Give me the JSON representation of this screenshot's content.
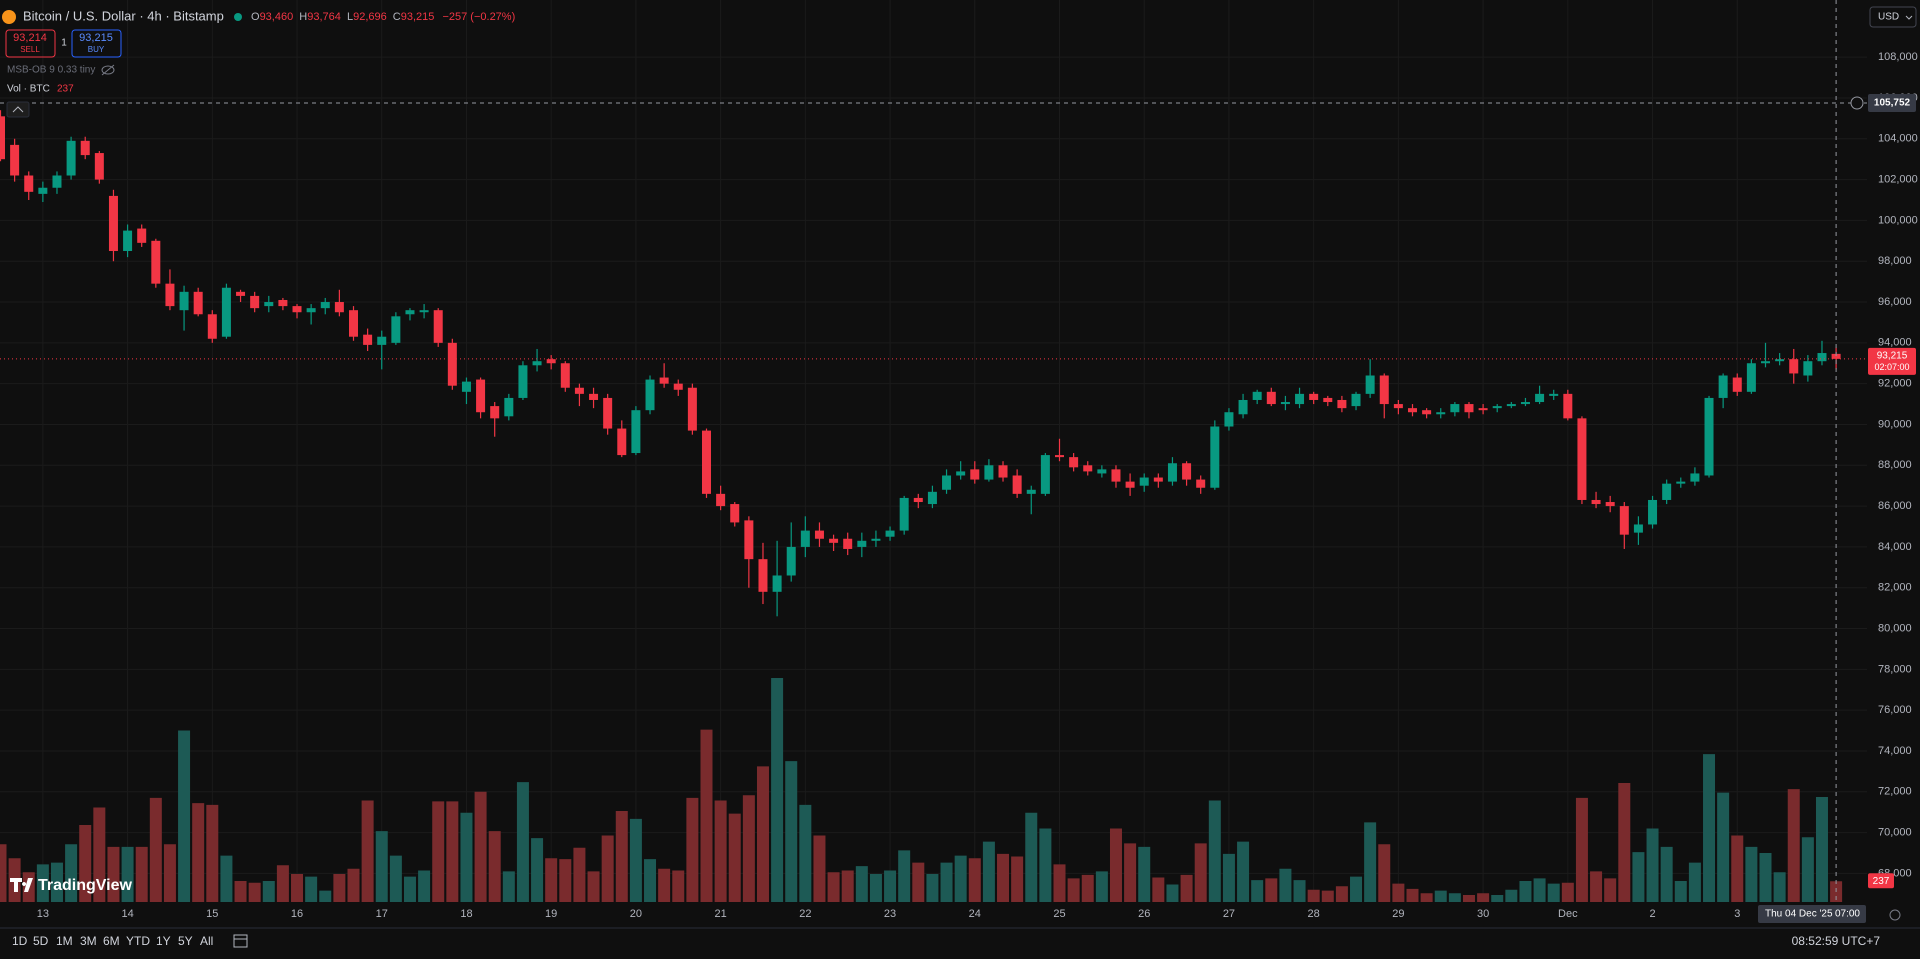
{
  "ui": {
    "symbol": "Bitcoin / U.S. Dollar · 4h · Bitstamp",
    "ohlc": [
      {
        "key": "O",
        "value": "93,460"
      },
      {
        "key": "H",
        "value": "93,764"
      },
      {
        "key": "L",
        "value": "92,696"
      },
      {
        "key": "C",
        "value": "93,215"
      }
    ],
    "change": "−257 (−0.27%)",
    "sell": {
      "price": "93,214",
      "label": "SELL"
    },
    "buy": {
      "price": "93,215",
      "label": "BUY"
    },
    "quantity": "1",
    "indicator": "MSB-OB 9 0.33 tiny",
    "volume_legend": "Vol · BTC",
    "currency": "USD",
    "ranges": [
      "1D",
      "5D",
      "1M",
      "3M",
      "6M",
      "YTD",
      "1Y",
      "5Y",
      "All"
    ],
    "clock": "08:52:59 UTC+7",
    "brand": "TradingView"
  },
  "chart_data": {
    "type": "candlestick",
    "ylim": [
      66600,
      110800
    ],
    "yticks": [
      {
        "value": 68000,
        "label": "68,000"
      },
      {
        "value": 70000,
        "label": "70,000"
      },
      {
        "value": 72000,
        "label": "72,000"
      },
      {
        "value": 74000,
        "label": "74,000"
      },
      {
        "value": 76000,
        "label": "76,000"
      },
      {
        "value": 78000,
        "label": "78,000"
      },
      {
        "value": 80000,
        "label": "80,000"
      },
      {
        "value": 82000,
        "label": "82,000"
      },
      {
        "value": 84000,
        "label": "84,000"
      },
      {
        "value": 86000,
        "label": "86,000"
      },
      {
        "value": 88000,
        "label": "88,000"
      },
      {
        "value": 90000,
        "label": "90,000"
      },
      {
        "value": 92000,
        "label": "92,000"
      },
      {
        "value": 94000,
        "label": "94,000"
      },
      {
        "value": 96000,
        "label": "96,000"
      },
      {
        "value": 98000,
        "label": "98,000"
      },
      {
        "value": 100000,
        "label": "100,000"
      },
      {
        "value": 102000,
        "label": "102,000"
      },
      {
        "value": 104000,
        "label": "104,000"
      },
      {
        "value": 106000,
        "label": "106,000"
      },
      {
        "value": 108000,
        "label": "108,000"
      }
    ],
    "grid": true,
    "up_color": "#089981",
    "down_color": "#f23645",
    "volume_up_color": "#1d5a55",
    "volume_down_color": "#7a2b2d",
    "volume_ylim": [
      0,
      2800
    ],
    "categories": [
      null,
      null,
      null,
      "13",
      null,
      null,
      null,
      null,
      null,
      "14",
      null,
      null,
      null,
      null,
      null,
      "15",
      null,
      null,
      null,
      null,
      null,
      "16",
      null,
      null,
      null,
      null,
      null,
      "17",
      null,
      null,
      null,
      null,
      null,
      "18",
      null,
      null,
      null,
      null,
      null,
      "19",
      null,
      null,
      null,
      null,
      null,
      "20",
      null,
      null,
      null,
      null,
      null,
      "21",
      null,
      null,
      null,
      null,
      null,
      "22",
      null,
      null,
      null,
      null,
      null,
      "23",
      null,
      null,
      null,
      null,
      null,
      "24",
      null,
      null,
      null,
      null,
      null,
      "25",
      null,
      null,
      null,
      null,
      null,
      "26",
      null,
      null,
      null,
      null,
      null,
      "27",
      null,
      null,
      null,
      null,
      null,
      "28",
      null,
      null,
      null,
      null,
      null,
      "29",
      null,
      null,
      null,
      null,
      null,
      "30",
      null,
      null,
      null,
      null,
      null,
      "Dec",
      null,
      null,
      null,
      null,
      null,
      "2",
      null,
      null,
      null,
      null,
      null,
      "3",
      null,
      null,
      null,
      null,
      null,
      null,
      null
    ],
    "candles": [
      [
        105100,
        105400,
        102900,
        103000
      ],
      [
        103700,
        104000,
        101900,
        102200
      ],
      [
        102200,
        102400,
        101000,
        101400
      ],
      [
        101300,
        101900,
        100900,
        101600
      ],
      [
        101600,
        102400,
        101300,
        102200
      ],
      [
        102200,
        104100,
        102000,
        103900
      ],
      [
        103900,
        104100,
        103000,
        103200
      ],
      [
        103300,
        103400,
        101800,
        102000
      ],
      [
        101200,
        101500,
        98000,
        98500
      ],
      [
        98500,
        99800,
        98200,
        99500
      ],
      [
        99600,
        99800,
        98700,
        98900
      ],
      [
        99000,
        99100,
        96700,
        96900
      ],
      [
        96900,
        97600,
        95600,
        95800
      ],
      [
        95600,
        96800,
        94600,
        96500
      ],
      [
        96500,
        96700,
        95300,
        95400
      ],
      [
        95400,
        95600,
        94000,
        94200
      ],
      [
        94300,
        96900,
        94200,
        96700
      ],
      [
        96500,
        96600,
        96000,
        96300
      ],
      [
        96300,
        96500,
        95500,
        95700
      ],
      [
        95800,
        96300,
        95500,
        96000
      ],
      [
        96100,
        96200,
        95600,
        95800
      ],
      [
        95800,
        95900,
        95200,
        95500
      ],
      [
        95500,
        95900,
        94900,
        95700
      ],
      [
        95700,
        96200,
        95400,
        96000
      ],
      [
        96000,
        96600,
        95300,
        95500
      ],
      [
        95600,
        95800,
        94100,
        94300
      ],
      [
        94400,
        94700,
        93600,
        93900
      ],
      [
        93900,
        94600,
        92700,
        94300
      ],
      [
        94000,
        95500,
        93900,
        95300
      ],
      [
        95400,
        95700,
        95100,
        95600
      ],
      [
        95500,
        95900,
        95200,
        95600
      ],
      [
        95600,
        95700,
        93800,
        94000
      ],
      [
        94000,
        94200,
        91700,
        91900
      ],
      [
        91600,
        92300,
        91000,
        92100
      ],
      [
        92200,
        92300,
        90300,
        90600
      ],
      [
        90900,
        91100,
        89400,
        90300
      ],
      [
        90400,
        91500,
        90200,
        91300
      ],
      [
        91300,
        93100,
        91200,
        92900
      ],
      [
        92900,
        93700,
        92600,
        93100
      ],
      [
        93200,
        93400,
        92700,
        93000
      ],
      [
        93000,
        93100,
        91600,
        91800
      ],
      [
        91800,
        92000,
        90900,
        91500
      ],
      [
        91500,
        91800,
        90800,
        91200
      ],
      [
        91300,
        91500,
        89500,
        89800
      ],
      [
        89800,
        90200,
        88400,
        88500
      ],
      [
        88600,
        90900,
        88500,
        90700
      ],
      [
        90700,
        92400,
        90500,
        92200
      ],
      [
        92300,
        93000,
        91800,
        92000
      ],
      [
        92000,
        92200,
        91400,
        91700
      ],
      [
        91800,
        92000,
        89500,
        89700
      ],
      [
        89700,
        89800,
        86400,
        86600
      ],
      [
        86600,
        87000,
        85800,
        86000
      ],
      [
        86100,
        86200,
        85000,
        85200
      ],
      [
        85300,
        85500,
        82000,
        83400
      ],
      [
        83400,
        84200,
        81200,
        81800
      ],
      [
        81800,
        84300,
        80600,
        82600
      ],
      [
        82600,
        85200,
        82300,
        84000
      ],
      [
        84000,
        85500,
        83500,
        84800
      ],
      [
        84800,
        85200,
        84000,
        84400
      ],
      [
        84400,
        84600,
        83800,
        84200
      ],
      [
        84400,
        84700,
        83600,
        83900
      ],
      [
        84000,
        84700,
        83500,
        84300
      ],
      [
        84300,
        84800,
        84000,
        84400
      ],
      [
        84500,
        85000,
        84300,
        84800
      ],
      [
        84800,
        86500,
        84600,
        86400
      ],
      [
        86400,
        86600,
        85900,
        86200
      ],
      [
        86100,
        87000,
        85900,
        86700
      ],
      [
        86800,
        87800,
        86600,
        87500
      ],
      [
        87500,
        88200,
        87300,
        87700
      ],
      [
        87800,
        88200,
        87100,
        87300
      ],
      [
        87300,
        88300,
        87200,
        88000
      ],
      [
        88000,
        88200,
        87200,
        87400
      ],
      [
        87500,
        87800,
        86400,
        86600
      ],
      [
        86600,
        87000,
        85600,
        86800
      ],
      [
        86600,
        88600,
        86500,
        88500
      ],
      [
        88500,
        89300,
        88200,
        88400
      ],
      [
        88400,
        88600,
        87700,
        87900
      ],
      [
        88000,
        88200,
        87500,
        87700
      ],
      [
        87600,
        88000,
        87400,
        87800
      ],
      [
        87800,
        88000,
        86900,
        87200
      ],
      [
        87200,
        87600,
        86500,
        86900
      ],
      [
        87000,
        87600,
        86700,
        87400
      ],
      [
        87400,
        87600,
        86900,
        87200
      ],
      [
        87200,
        88400,
        87000,
        88100
      ],
      [
        88100,
        88200,
        87000,
        87300
      ],
      [
        87300,
        87500,
        86600,
        86900
      ],
      [
        86900,
        90200,
        86800,
        89900
      ],
      [
        89900,
        90800,
        89700,
        90600
      ],
      [
        90500,
        91500,
        90300,
        91200
      ],
      [
        91200,
        91700,
        91000,
        91600
      ],
      [
        91600,
        91800,
        90900,
        91000
      ],
      [
        91000,
        91400,
        90700,
        91100
      ],
      [
        91000,
        91800,
        90800,
        91500
      ],
      [
        91500,
        91600,
        91000,
        91200
      ],
      [
        91300,
        91400,
        90900,
        91100
      ],
      [
        91200,
        91400,
        90600,
        90800
      ],
      [
        90900,
        91600,
        90700,
        91500
      ],
      [
        91500,
        93200,
        91300,
        92400
      ],
      [
        92400,
        92500,
        90300,
        91000
      ],
      [
        91000,
        91200,
        90500,
        90800
      ],
      [
        90800,
        91000,
        90400,
        90600
      ],
      [
        90700,
        90800,
        90300,
        90500
      ],
      [
        90500,
        90800,
        90300,
        90600
      ],
      [
        90600,
        91100,
        90400,
        91000
      ],
      [
        91000,
        91100,
        90300,
        90600
      ],
      [
        90800,
        91000,
        90500,
        90700
      ],
      [
        90800,
        91000,
        90600,
        90900
      ],
      [
        90900,
        91100,
        90800,
        91000
      ],
      [
        91000,
        91300,
        90900,
        91100
      ],
      [
        91100,
        91900,
        91000,
        91500
      ],
      [
        91400,
        91700,
        91200,
        91500
      ],
      [
        91500,
        91700,
        90200,
        90300
      ],
      [
        90300,
        90400,
        86100,
        86300
      ],
      [
        86300,
        86700,
        85900,
        86100
      ],
      [
        86200,
        86500,
        85700,
        86000
      ],
      [
        86000,
        86200,
        83900,
        84600
      ],
      [
        84700,
        85500,
        84100,
        85100
      ],
      [
        85100,
        86500,
        84900,
        86300
      ],
      [
        86300,
        87300,
        86100,
        87100
      ],
      [
        87100,
        87400,
        86900,
        87200
      ],
      [
        87200,
        87900,
        87000,
        87600
      ],
      [
        87500,
        91400,
        87400,
        91300
      ],
      [
        91300,
        92500,
        90800,
        92400
      ],
      [
        92300,
        92500,
        91400,
        91600
      ],
      [
        91600,
        93200,
        91500,
        93000
      ],
      [
        93000,
        94000,
        92800,
        93100
      ],
      [
        93100,
        93500,
        92900,
        93200
      ],
      [
        93200,
        93700,
        92000,
        92500
      ],
      [
        92400,
        93400,
        92100,
        93100
      ],
      [
        93100,
        94100,
        92900,
        93500
      ],
      [
        93460,
        93764,
        92696,
        93215
      ]
    ],
    "volume": [
      660,
      500,
      340,
      430,
      450,
      660,
      880,
      1080,
      630,
      630,
      630,
      1190,
      660,
      1960,
      1130,
      1110,
      530,
      240,
      220,
      240,
      420,
      320,
      290,
      130,
      320,
      380,
      1160,
      810,
      530,
      290,
      360,
      1150,
      1150,
      1020,
      1260,
      810,
      350,
      1370,
      730,
      500,
      490,
      620,
      350,
      760,
      1040,
      950,
      490,
      380,
      360,
      1190,
      1970,
      1160,
      1010,
      1220,
      1550,
      2560,
      1610,
      1110,
      760,
      340,
      360,
      410,
      320,
      360,
      590,
      450,
      320,
      450,
      530,
      500,
      690,
      550,
      520,
      1020,
      840,
      430,
      270,
      310,
      350,
      840,
      670,
      630,
      280,
      200,
      310,
      670,
      1160,
      550,
      690,
      250,
      270,
      380,
      250,
      140,
      130,
      180,
      290,
      910,
      660,
      210,
      150,
      100,
      130,
      100,
      80,
      100,
      80,
      140,
      240,
      270,
      210,
      220,
      1190,
      350,
      270,
      1360,
      570,
      840,
      630,
      240,
      450,
      1690,
      1250,
      760,
      630,
      560,
      340,
      1290,
      740,
      1200,
      237
    ],
    "last_price": {
      "value": 93215,
      "label": "93,215"
    },
    "countdown": "02:07:00",
    "crosshair": {
      "price": {
        "value": 105752,
        "label": "105,752"
      },
      "date": "Thu 04 Dec '25",
      "time": "07:00"
    }
  }
}
